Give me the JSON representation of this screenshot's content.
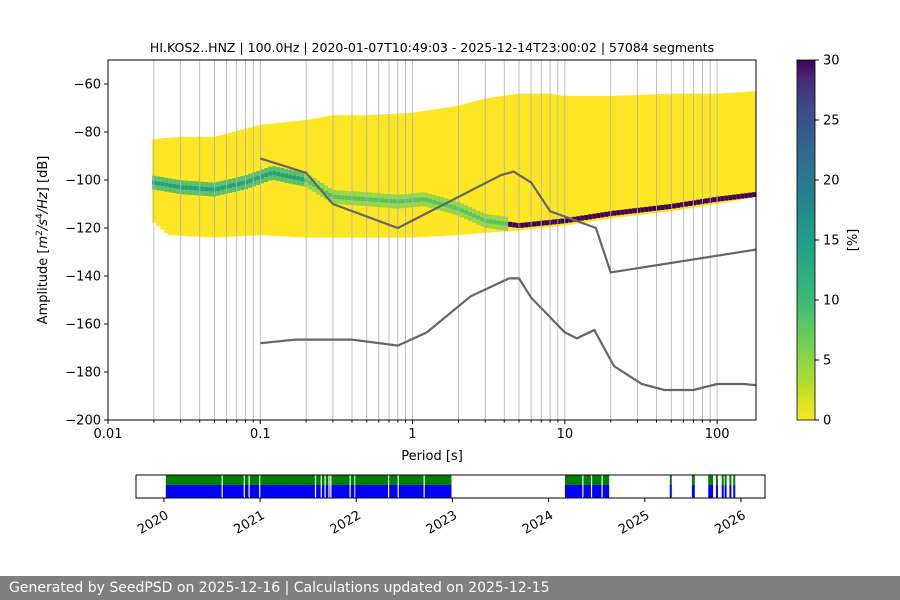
{
  "chart_data": [
    {
      "type": "heatmap",
      "title": "HI.KOS2..HNZ | 100.0Hz | 2020-01-07T10:49:03 - 2025-12-14T23:00:02 | 57084 segments",
      "xlabel": "Period [s]",
      "ylabel_parts": [
        "Amplitude [",
        "m",
        "2",
        "/",
        "s",
        "4",
        "/",
        "Hz",
        "] [dB]"
      ],
      "x_scale": "log",
      "xlim": [
        0.01,
        180
      ],
      "ylim": [
        -200,
        -50
      ],
      "x_ticks": [
        0.01,
        0.1,
        1,
        10,
        100
      ],
      "x_tick_labels": [
        "0.01",
        "0.1",
        "1",
        "10",
        "100"
      ],
      "y_ticks": [
        -200,
        -180,
        -160,
        -140,
        -120,
        -100,
        -80,
        -60
      ],
      "y_tick_labels": [
        "−200",
        "−180",
        "−160",
        "−140",
        "−120",
        "−100",
        "−80",
        "−60"
      ],
      "grid": "vertical lines at log-spaced periods",
      "colorbar": {
        "label": "[%]",
        "range": [
          0,
          30
        ],
        "ticks": [
          0,
          5,
          10,
          15,
          20,
          25,
          30
        ],
        "tick_labels": [
          "0",
          "5",
          "10",
          "15",
          "20",
          "25",
          "30"
        ],
        "colormap": "viridis_r"
      },
      "density_envelope": {
        "period_start": 0.0195,
        "upper_y": [
          [
            0.0195,
            -83
          ],
          [
            0.03,
            -82
          ],
          [
            0.05,
            -82
          ],
          [
            0.1,
            -77
          ],
          [
            0.2,
            -75
          ],
          [
            0.3,
            -73
          ],
          [
            0.5,
            -73
          ],
          [
            1.0,
            -72
          ],
          [
            2.0,
            -69
          ],
          [
            3.0,
            -66
          ],
          [
            5.0,
            -64
          ],
          [
            8.0,
            -64
          ],
          [
            10,
            -65
          ],
          [
            20,
            -65
          ],
          [
            50,
            -64
          ],
          [
            100,
            -64
          ],
          [
            180,
            -63
          ]
        ],
        "lower_y": [
          [
            0.0195,
            -117
          ],
          [
            0.025,
            -123
          ],
          [
            0.05,
            -124
          ],
          [
            0.1,
            -123
          ],
          [
            0.2,
            -124
          ],
          [
            0.5,
            -124
          ],
          [
            1.0,
            -124
          ],
          [
            2.0,
            -123
          ],
          [
            3.0,
            -122
          ],
          [
            5.0,
            -121
          ],
          [
            10,
            -119
          ],
          [
            20,
            -116
          ],
          [
            50,
            -113
          ],
          [
            100,
            -110
          ],
          [
            180,
            -107
          ]
        ],
        "ridge_y": [
          [
            0.0195,
            -101
          ],
          [
            0.03,
            -103
          ],
          [
            0.05,
            -104
          ],
          [
            0.08,
            -101
          ],
          [
            0.12,
            -97
          ],
          [
            0.2,
            -100
          ],
          [
            0.3,
            -107
          ],
          [
            0.5,
            -108
          ],
          [
            0.8,
            -109
          ],
          [
            1.2,
            -108
          ],
          [
            2.0,
            -112
          ],
          [
            3.0,
            -117
          ],
          [
            5.0,
            -119
          ],
          [
            10,
            -117
          ],
          [
            20,
            -114
          ],
          [
            50,
            -111
          ],
          [
            100,
            -108
          ],
          [
            180,
            -106
          ]
        ]
      },
      "series": [
        {
          "values": [
            [
              0.1,
              -91
            ],
            [
              0.2,
              -97
            ],
            [
              0.3,
              -110
            ],
            [
              0.8,
              -120
            ],
            [
              3.8,
              -98
            ],
            [
              4.6,
              -96.5
            ],
            [
              6.0,
              -101
            ],
            [
              8.0,
              -113
            ],
            [
              16,
              -120
            ],
            [
              20,
              -138.5
            ],
            [
              180,
              -129
            ]
          ]
        },
        {
          "values": [
            [
              0.1,
              -168
            ],
            [
              0.17,
              -166.5
            ],
            [
              0.4,
              -166.5
            ],
            [
              0.8,
              -169
            ],
            [
              1.24,
              -163.5
            ],
            [
              2.4,
              -148.5
            ],
            [
              4.3,
              -141
            ],
            [
              5.0,
              -141
            ],
            [
              6.0,
              -149
            ],
            [
              10,
              -163.5
            ],
            [
              12,
              -166
            ],
            [
              15.6,
              -162.5
            ],
            [
              21,
              -177.5
            ],
            [
              32,
              -185
            ],
            [
              45,
              -187.5
            ],
            [
              70,
              -187.5
            ],
            [
              100,
              -185
            ],
            [
              150,
              -185
            ],
            [
              180,
              -185.5
            ]
          ]
        }
      ]
    },
    {
      "type": "timeline",
      "x_tick_labels": [
        "2020",
        "2021",
        "2022",
        "2023",
        "2024",
        "2025",
        "2026"
      ],
      "x_ticks_years": [
        2020,
        2021,
        2022,
        2023,
        2024,
        2025,
        2026
      ],
      "xlim_years": [
        2019.71,
        2026.25
      ],
      "colors": {
        "available": "#0000ff",
        "processed": "#008000"
      },
      "blocks": [
        [
          2020.02,
          2021.98
        ],
        [
          2021.99,
          2022.99
        ],
        [
          2024.17,
          2024.63
        ],
        [
          2025.26,
          2025.27
        ],
        [
          2025.49,
          2025.52
        ],
        [
          2025.66,
          2025.71
        ],
        [
          2025.74,
          2025.75
        ],
        [
          2025.8,
          2025.81
        ],
        [
          2025.83,
          2025.84
        ],
        [
          2025.88,
          2025.89
        ],
        [
          2025.92,
          2025.93
        ]
      ],
      "gaps": [
        2020.6,
        2020.83,
        2020.88,
        2020.99,
        2021.57,
        2021.63,
        2021.67,
        2021.71,
        2021.73,
        2021.93,
        2022.33,
        2022.43,
        2022.7,
        2024.35,
        2024.44,
        2024.55
      ]
    }
  ],
  "footer": {
    "text": "Generated by SeedPSD on 2025-12-16 | Calculations updated on 2025-12-15"
  },
  "style": {
    "curve_color": "#666666",
    "grid_color": "#b0b0b0"
  }
}
